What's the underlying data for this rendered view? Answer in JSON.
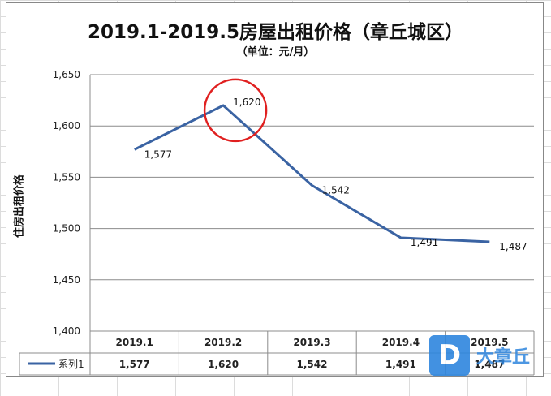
{
  "chart_data": {
    "type": "line",
    "title": "2019.1-2019.5房屋出租价格（章丘城区）",
    "subtitle": "（单位：元/月）",
    "xlabel": "",
    "ylabel": "住房出租价格",
    "categories": [
      "2019.1",
      "2019.2",
      "2019.3",
      "2019.4",
      "2019.5"
    ],
    "series": [
      {
        "name": "系列1",
        "values": [
          1577,
          1620,
          1542,
          1491,
          1487
        ]
      }
    ],
    "value_labels": [
      "1,577",
      "1,620",
      "1,542",
      "1,491",
      "1,487"
    ],
    "ylim": [
      1400,
      1650
    ],
    "yticks": [
      "1,400",
      "1,450",
      "1,500",
      "1,550",
      "1,600",
      "1,650"
    ],
    "ytick_values": [
      1400,
      1450,
      1500,
      1550,
      1600,
      1650
    ],
    "grid": true,
    "data_table": true,
    "highlight": {
      "category": "2019.2",
      "shape": "circle",
      "color": "#e02020"
    },
    "line_color": "#3a63a3"
  },
  "watermark": {
    "box_letter": "D",
    "text": "大章丘"
  }
}
